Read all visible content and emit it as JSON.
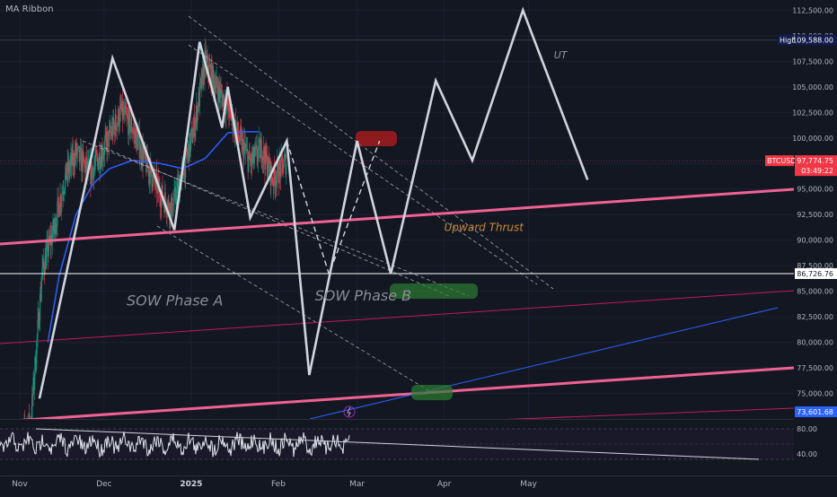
{
  "window": {
    "indicator": "MA Ribbon"
  },
  "chart_data": {
    "type": "candlestick",
    "symbol": "BTCUSDT",
    "price_axis": {
      "min": 72500,
      "max": 113500,
      "ticks": [
        {
          "value": 112500,
          "label": "112,500.00"
        },
        {
          "value": 110000,
          "label": "110,000.00"
        },
        {
          "value": 107500,
          "label": "107,500.00"
        },
        {
          "value": 105000,
          "label": "105,000.00"
        },
        {
          "value": 102500,
          "label": "102,500.00"
        },
        {
          "value": 100000,
          "label": "100,000.00"
        },
        {
          "value": 97500,
          "label": "97,500.00"
        },
        {
          "value": 95000,
          "label": "95,000.00"
        },
        {
          "value": 92500,
          "label": "92,500.00"
        },
        {
          "value": 90000,
          "label": "90,000.00"
        },
        {
          "value": 87500,
          "label": "87,500.00"
        },
        {
          "value": 85000,
          "label": "85,000.00"
        },
        {
          "value": 82500,
          "label": "82,500.00"
        },
        {
          "value": 80000,
          "label": "80,000.00"
        },
        {
          "value": 77500,
          "label": "77,500.00"
        },
        {
          "value": 75000,
          "label": "75,000.00"
        }
      ]
    },
    "time_axis": {
      "labels": [
        {
          "text": "Nov",
          "day": 0,
          "bold": false
        },
        {
          "text": "Dec",
          "day": 30,
          "bold": false
        },
        {
          "text": "2025",
          "day": 61,
          "bold": true
        },
        {
          "text": "Feb",
          "day": 92,
          "bold": false
        },
        {
          "text": "Mar",
          "day": 120,
          "bold": false
        },
        {
          "text": "Apr",
          "day": 151,
          "bold": false
        },
        {
          "text": "May",
          "day": 181,
          "bold": false
        }
      ],
      "day_max": 284
    },
    "markers": [
      {
        "kind": "high",
        "label": "High",
        "value": 109588,
        "text": "109,588.00",
        "color": "#131a4d"
      },
      {
        "kind": "last",
        "label": "BTCUSDT",
        "value": 97774.75,
        "text": "97,774.75",
        "countdown": "03:49:22",
        "color": "#f23645"
      },
      {
        "kind": "level",
        "label": "",
        "value": 86726.76,
        "text": "86,726.76",
        "color": "#ffffff"
      },
      {
        "kind": "level2",
        "label": "",
        "value": 73601.68,
        "text": "73,601.68",
        "color": "#2962ff"
      }
    ],
    "annotations": [
      {
        "text": "SOW Phase A",
        "day": 38,
        "value": 83600,
        "color": "#8a8d96",
        "size": 16
      },
      {
        "text": "SOW Phase B",
        "day": 105,
        "value": 84100,
        "color": "#8a8d96",
        "size": 16
      },
      {
        "text": "Upward Thrust",
        "day": 151,
        "value": 90900,
        "color": "#c8893a",
        "size": 12
      },
      {
        "text": "UT",
        "day": 190,
        "value": 107800,
        "color": "#9598a1",
        "size": 11
      }
    ],
    "projection_path": [
      {
        "day": 7,
        "value": 74500
      },
      {
        "day": 33,
        "value": 107800
      },
      {
        "day": 55,
        "value": 91000
      },
      {
        "day": 64,
        "value": 109400
      },
      {
        "day": 72,
        "value": 101000
      },
      {
        "day": 74,
        "value": 105000
      },
      {
        "day": 82,
        "value": 92200
      },
      {
        "day": 95,
        "value": 99700
      },
      {
        "day": 103,
        "value": 76800
      },
      {
        "day": 120,
        "value": 99700
      },
      {
        "day": 132,
        "value": 86700
      },
      {
        "day": 148,
        "value": 105600
      },
      {
        "day": 161,
        "value": 97800
      },
      {
        "day": 179,
        "value": 112500
      },
      {
        "day": 202,
        "value": 95900
      }
    ],
    "rsi": {
      "ticks": [
        {
          "value": 80,
          "label": "80.00"
        },
        {
          "value": 40,
          "label": "40.00"
        }
      ]
    }
  }
}
